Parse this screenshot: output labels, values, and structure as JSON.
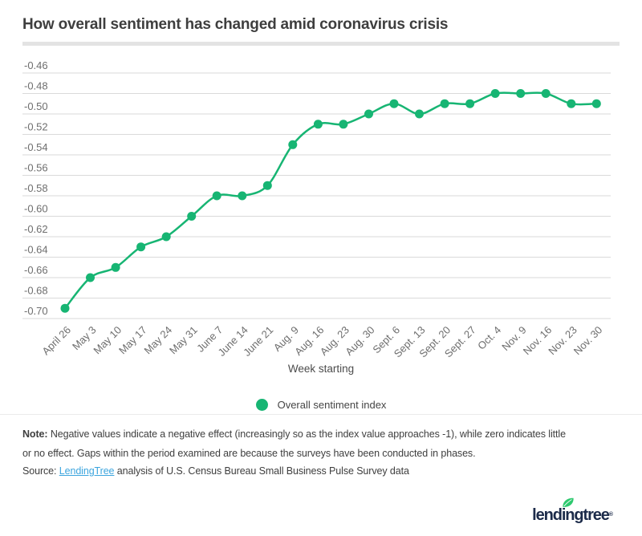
{
  "title": "How overall sentiment has changed amid coronavirus crisis",
  "chart_data": {
    "type": "line",
    "title": "How overall sentiment has changed amid coronavirus crisis",
    "categories": [
      "April 26",
      "May 3",
      "May 10",
      "May 17",
      "May 24",
      "May 31",
      "June 7",
      "June 14",
      "June 21",
      "Aug. 9",
      "Aug. 16",
      "Aug. 23",
      "Aug. 30",
      "Sept. 6",
      "Sept. 13",
      "Sept. 20",
      "Sept. 27",
      "Oct. 4",
      "Nov. 9",
      "Nov. 16",
      "Nov. 23",
      "Nov. 30"
    ],
    "series": [
      {
        "name": "Overall sentiment index",
        "values": [
          -0.69,
          -0.66,
          -0.65,
          -0.63,
          -0.62,
          -0.6,
          -0.58,
          -0.58,
          -0.57,
          -0.53,
          -0.51,
          -0.51,
          -0.5,
          -0.49,
          -0.5,
          -0.49,
          -0.49,
          -0.48,
          -0.48,
          -0.48,
          -0.49,
          -0.49
        ]
      }
    ],
    "xlabel": "Week starting",
    "ylabel": "",
    "ylim": [
      -0.7,
      -0.46
    ],
    "ytick_step": 0.02,
    "yticks": [
      "-0.46",
      "-0.48",
      "-0.50",
      "-0.52",
      "-0.54",
      "-0.56",
      "-0.58",
      "-0.60",
      "-0.62",
      "-0.64",
      "-0.66",
      "-0.68",
      "-0.70"
    ],
    "grid": "horizontal",
    "legend_position": "bottom"
  },
  "notes": {
    "note_label": "Note:",
    "note_lines": [
      "Negative values indicate a negative effect (increasingly so as the index value approaches -1), while zero indicates little",
      "or no effect. Gaps within the period examined are because the surveys have been conducted in phases."
    ],
    "source_label": "Source:",
    "source_link": "LendingTree",
    "source_rest": " analysis of U.S. Census Bureau Small Business Pulse Survey data"
  },
  "branding": {
    "logo_text": "lendingtree",
    "registered_mark": "®"
  },
  "colors": {
    "accent_green": "#17b573",
    "grid_gray": "#dadada",
    "axis_text": "#6e6e6e",
    "link_blue": "#3ca5de",
    "logo_navy": "#1c2b4a",
    "leaf_green": "#2ec96f"
  }
}
